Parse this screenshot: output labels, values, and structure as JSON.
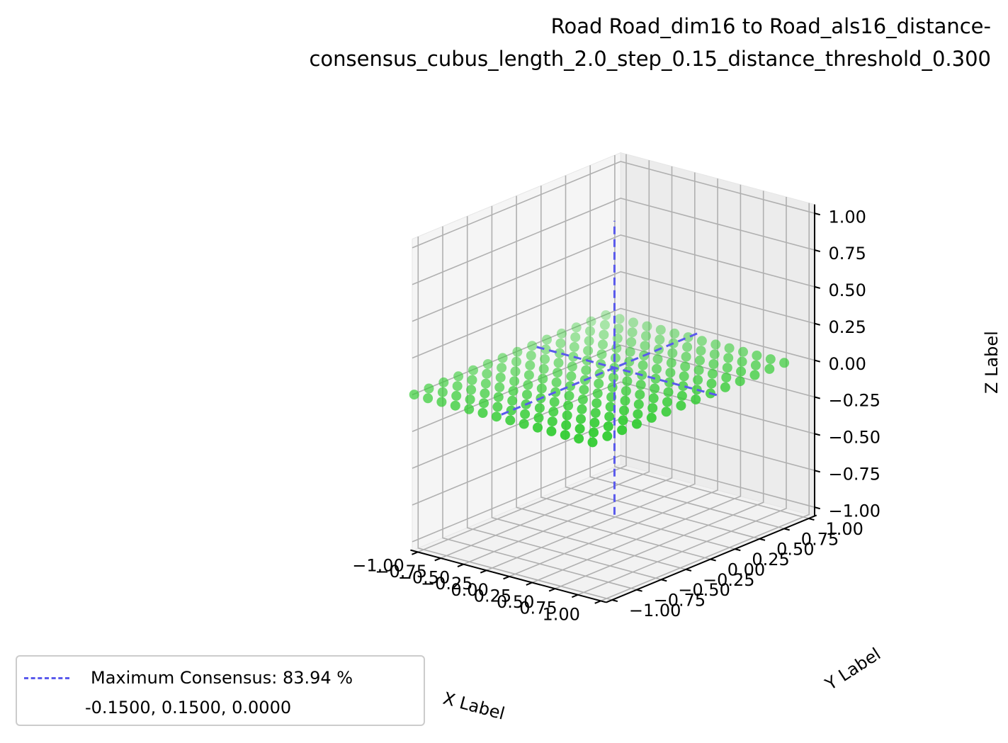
{
  "chart_data": {
    "type": "scatter",
    "projection": "3d",
    "title": "Road Road_dim16 to Road_als16_distance-consensus_cubus_length_2.0_step_0.15_distance_threshold_0.300",
    "title_lines": [
      "Road Road_dim16 to Road_als16_distance-",
      "consensus_cubus_length_2.0_step_0.15_distance_threshold_0.300"
    ],
    "xlabel": "X Label",
    "ylabel": "Y Label",
    "zlabel": "Z Label",
    "xlim": [
      -1.0,
      1.0
    ],
    "ylim": [
      -1.0,
      1.0
    ],
    "zlim": [
      -1.0,
      1.0
    ],
    "xticks": [
      "−1.00",
      "−0.75",
      "−0.50",
      "−0.25",
      "0.00",
      "0.25",
      "0.50",
      "0.75",
      "1.00"
    ],
    "yticks": [
      "−1.00",
      "−0.75",
      "−0.50",
      "−0.25",
      "0.00",
      "0.25",
      "0.50",
      "0.75",
      "1.00"
    ],
    "zticks": [
      "−1.00",
      "−0.75",
      "−0.50",
      "−0.25",
      "0.00",
      "0.25",
      "0.50",
      "0.75",
      "1.00"
    ],
    "grid": true,
    "legend_position": "lower-left",
    "series": [
      {
        "kind": "scatter",
        "color": "#33cc33",
        "grid_points": {
          "x_start": -1.05,
          "x_step": 0.15,
          "x_count": 14,
          "y_start": -1.05,
          "y_step": 0.15,
          "y_count": 14,
          "z": 0.0
        }
      },
      {
        "name": "Maximum Consensus: 83.94 %",
        "kind": "crosshair",
        "color": "#5a5aec",
        "linestyle": "dashed",
        "center": [
          -0.15,
          0.15,
          0.0
        ]
      }
    ],
    "legend": {
      "label": "Maximum Consensus: 83.94 %",
      "coords": "-0.1500, 0.1500, 0.0000"
    }
  }
}
